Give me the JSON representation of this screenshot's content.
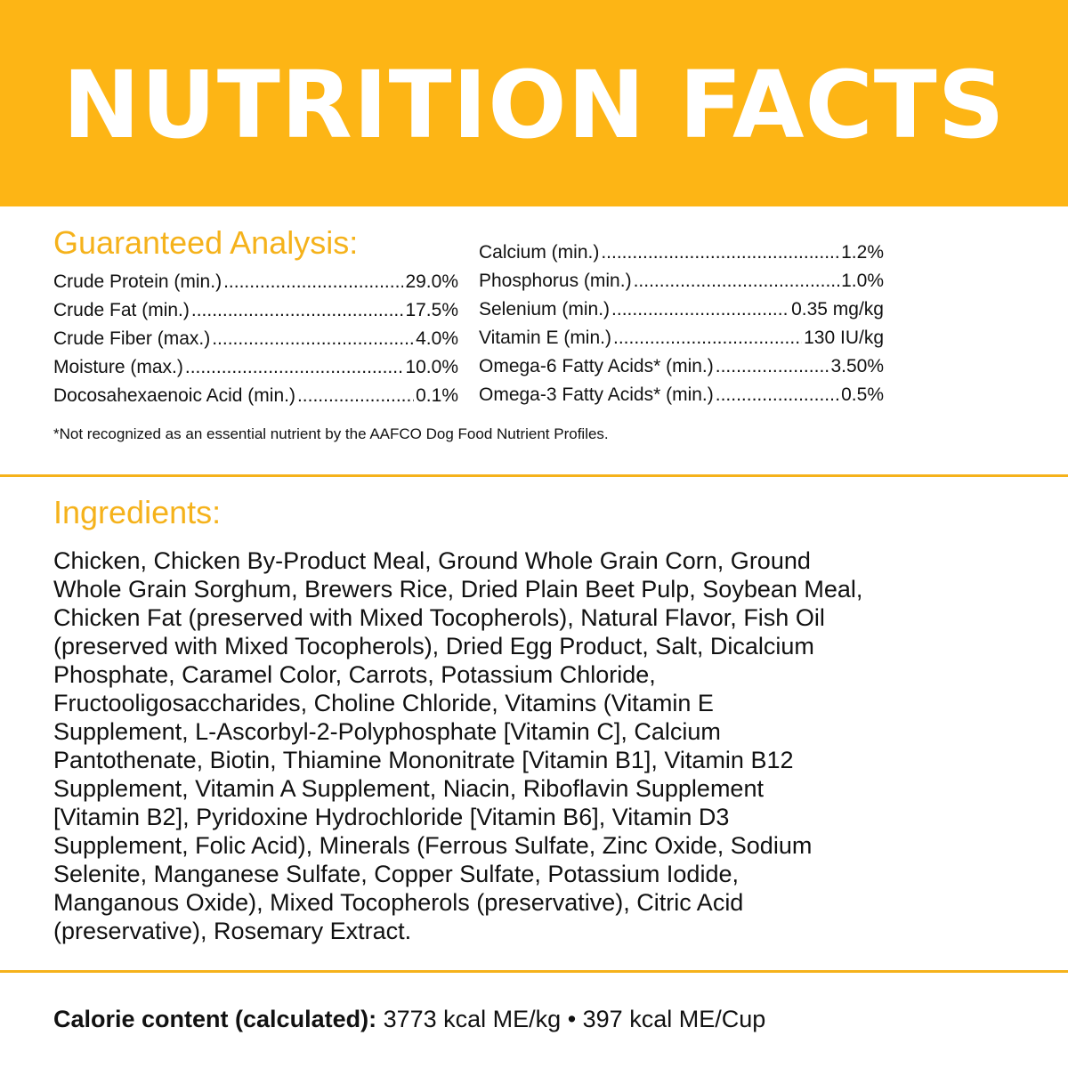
{
  "header": {
    "title": "NUTRITION FACTS",
    "background_color": "#FDB515"
  },
  "guaranteed_analysis": {
    "heading": "Guaranteed Analysis:",
    "left": [
      {
        "name": "Crude Protein (min.)",
        "value": "29.0%"
      },
      {
        "name": "Crude Fat (min.)",
        "value": "17.5%"
      },
      {
        "name": "Crude Fiber (max.)",
        "value": "4.0%"
      },
      {
        "name": "Moisture (max.)",
        "value": "10.0%"
      },
      {
        "name": "Docosahexaenoic Acid (min.)",
        "value": "0.1%"
      }
    ],
    "right": [
      {
        "name": "Calcium (min.)",
        "value": "1.2%"
      },
      {
        "name": "Phosphorus (min.)",
        "value": "1.0%"
      },
      {
        "name": "Selenium (min.)",
        "value": "0.35 mg/kg"
      },
      {
        "name": "Vitamin E (min.)",
        "value": "130 IU/kg"
      },
      {
        "name": "Omega-6 Fatty Acids* (min.)",
        "value": "3.50%"
      },
      {
        "name": "Omega-3 Fatty Acids* (min.)",
        "value": "0.5%"
      }
    ],
    "footnote": "*Not recognized as an essential nutrient by the AAFCO Dog Food Nutrient Profiles."
  },
  "ingredients": {
    "heading": "Ingredients:",
    "lines": [
      "Chicken, Chicken By-Product Meal, Ground Whole Grain Corn, Ground",
      "Whole Grain Sorghum, Brewers Rice, Dried Plain Beet Pulp, Soybean Meal,",
      "Chicken Fat (preserved with Mixed Tocopherols), Natural Flavor, Fish Oil",
      "(preserved with Mixed Tocopherols), Dried Egg Product, Salt, Dicalcium",
      "Phosphate, Caramel Color, Carrots, Potassium Chloride,",
      "Fructooligosaccharides, Choline Chloride, Vitamins (Vitamin E",
      "Supplement, L-Ascorbyl-2-Polyphosphate [Vitamin C], Calcium",
      "Pantothenate, Biotin, Thiamine Mononitrate [Vitamin B1], Vitamin B12",
      "Supplement, Vitamin A Supplement, Niacin, Riboflavin Supplement",
      "[Vitamin B2], Pyridoxine Hydrochloride [Vitamin B6], Vitamin D3",
      "Supplement, Folic Acid), Minerals (Ferrous Sulfate, Zinc Oxide, Sodium",
      "Selenite, Manganese Sulfate, Copper Sulfate, Potassium Iodide,",
      "Manganous Oxide), Mixed Tocopherols (preservative), Citric Acid",
      "(preservative), Rosemary Extract."
    ]
  },
  "calorie": {
    "label": "Calorie content (calculated):",
    "value": "3773 kcal ME/kg • 397 kcal ME/Cup"
  },
  "accent_color": "#F5B21B"
}
